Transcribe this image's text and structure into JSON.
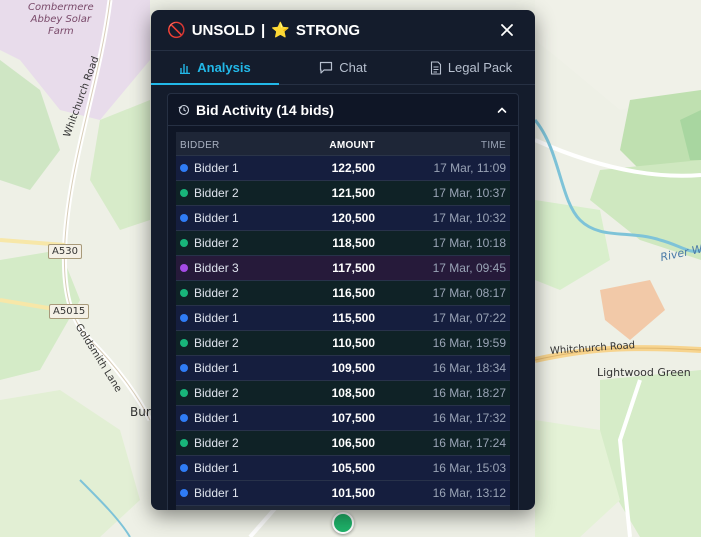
{
  "map": {
    "labels": {
      "combermere": "Combermere\nAbbey Solar\nFarm",
      "whitchurch_road_left": "Whitchurch Road",
      "goldsmith_lane": "Goldsmith Lane",
      "burley": "Burley",
      "whitchurch_road_right": "Whitchurch Road",
      "lightwood_green": "Lightwood Green",
      "river": "River We"
    },
    "shields": {
      "a530": "A530",
      "a5015": "A5015"
    }
  },
  "panel": {
    "status_emoji": "🚫",
    "status_text": "UNSOLD",
    "separator": "|",
    "rating_emoji": "⭐",
    "rating_text": "STRONG"
  },
  "tabs": [
    {
      "label": "Analysis",
      "icon": "bar-chart-icon",
      "active": true
    },
    {
      "label": "Chat",
      "icon": "chat-bubble-icon",
      "active": false
    },
    {
      "label": "Legal Pack",
      "icon": "document-icon",
      "active": false
    }
  ],
  "bid_activity": {
    "title": "Bid Activity (14 bids)",
    "columns": {
      "bidder": "BIDDER",
      "amount": "AMOUNT",
      "time": "TIME"
    },
    "colors": {
      "bidder1": "#2f7cf6",
      "bidder2": "#18b57a",
      "bidder3": "#a54be6"
    },
    "rows": [
      {
        "bidder": "Bidder 1",
        "amount": "122,500",
        "time": "17 Mar, 11:09",
        "group": 1
      },
      {
        "bidder": "Bidder 2",
        "amount": "121,500",
        "time": "17 Mar, 10:37",
        "group": 2
      },
      {
        "bidder": "Bidder 1",
        "amount": "120,500",
        "time": "17 Mar, 10:32",
        "group": 1
      },
      {
        "bidder": "Bidder 2",
        "amount": "118,500",
        "time": "17 Mar, 10:18",
        "group": 2
      },
      {
        "bidder": "Bidder 3",
        "amount": "117,500",
        "time": "17 Mar, 09:45",
        "group": 3
      },
      {
        "bidder": "Bidder 2",
        "amount": "116,500",
        "time": "17 Mar, 08:17",
        "group": 2
      },
      {
        "bidder": "Bidder 1",
        "amount": "115,500",
        "time": "17 Mar, 07:22",
        "group": 1
      },
      {
        "bidder": "Bidder 2",
        "amount": "110,500",
        "time": "16 Mar, 19:59",
        "group": 2
      },
      {
        "bidder": "Bidder 1",
        "amount": "109,500",
        "time": "16 Mar, 18:34",
        "group": 1
      },
      {
        "bidder": "Bidder 2",
        "amount": "108,500",
        "time": "16 Mar, 18:27",
        "group": 2
      },
      {
        "bidder": "Bidder 1",
        "amount": "107,500",
        "time": "16 Mar, 17:32",
        "group": 1
      },
      {
        "bidder": "Bidder 2",
        "amount": "106,500",
        "time": "16 Mar, 17:24",
        "group": 2
      },
      {
        "bidder": "Bidder 1",
        "amount": "105,500",
        "time": "16 Mar, 15:03",
        "group": 1
      },
      {
        "bidder": "Bidder 1",
        "amount": "101,500",
        "time": "16 Mar, 13:12",
        "group": 1
      }
    ]
  }
}
